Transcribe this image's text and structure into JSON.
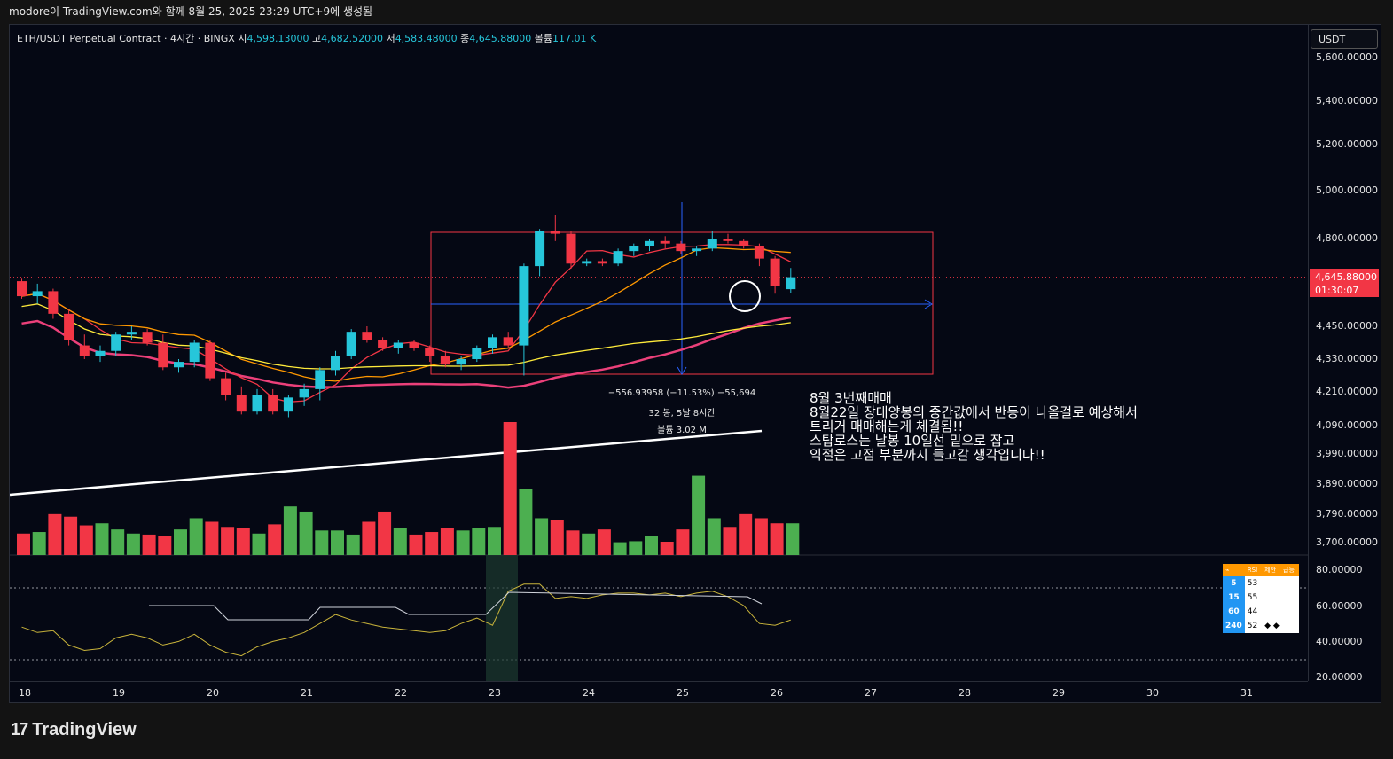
{
  "header": {
    "caption": "modore이 TradingView.com와 함께 8월 25, 2025 23:29 UTC+9에 생성됨"
  },
  "legend": {
    "symbol": "ETH/USDT Perpetual Contract · 4시간 · BINGX",
    "open_label": "시",
    "open": "4,598.13000",
    "high_label": "고",
    "high": "4,682.52000",
    "low_label": "저",
    "low": "4,583.48000",
    "close_label": "종",
    "close": "4,645.88000",
    "volume_label": "볼륨",
    "volume": "117.01 K"
  },
  "price_scale": {
    "currency": "USDT",
    "labels": [
      "5,600.00000",
      "5,400.00000",
      "5,200.00000",
      "5,000.00000",
      "4,800.00000",
      "4,450.00000",
      "4,330.00000",
      "4,210.00000",
      "4,090.00000",
      "3,990.00000",
      "3,890.00000",
      "3,790.00000",
      "3,700.00000"
    ],
    "last_price": "4,645.88000",
    "countdown": "01:30:07"
  },
  "rsi_scale": {
    "labels": [
      "80.00000",
      "60.00000",
      "40.00000",
      "20.00000"
    ]
  },
  "time_axis": {
    "labels": [
      "18",
      "19",
      "20",
      "21",
      "22",
      "23",
      "24",
      "25",
      "26",
      "27",
      "28",
      "29",
      "30",
      "31"
    ]
  },
  "measurement": {
    "change": "−556.93958 (−11.53%) −55,694",
    "bars": "32 봉, 5날 8시간",
    "volume": "볼륨 3.02 M"
  },
  "note": {
    "lines": [
      "8월 3번째매매",
      "8월22일 장대양봉의 중간값에서 반등이 나올걸로 예상해서",
      "트리거 매매해는게 체결됨!!",
      "스탑로스는 날봉 10일선 밑으로 잡고",
      "익절은 고점 부분까지 들고갈 생각입니다!!"
    ]
  },
  "rsi_table": {
    "headers": [
      "⌁",
      "RSI",
      "제안",
      "급등"
    ],
    "rows": [
      {
        "tf": "5",
        "value": "53",
        "extra": ""
      },
      {
        "tf": "15",
        "value": "55",
        "extra": ""
      },
      {
        "tf": "60",
        "value": "44",
        "extra": ""
      },
      {
        "tf": "240",
        "value": "52",
        "extra": "◆ ◆"
      }
    ]
  },
  "brand": {
    "name": "TradingView"
  },
  "colors": {
    "up": "#26c6da",
    "down": "#f23645",
    "vol_up": "#4caf50",
    "vol_down": "#f23645"
  },
  "chart_data": {
    "type": "candlestick",
    "timeframe": "4h",
    "candles": [
      [
        4630,
        4640,
        4560,
        4570
      ],
      [
        4570,
        4620,
        4540,
        4590
      ],
      [
        4590,
        4600,
        4480,
        4500
      ],
      [
        4500,
        4520,
        4380,
        4400
      ],
      [
        4380,
        4420,
        4330,
        4340
      ],
      [
        4340,
        4380,
        4320,
        4360
      ],
      [
        4360,
        4430,
        4340,
        4420
      ],
      [
        4420,
        4450,
        4400,
        4430
      ],
      [
        4430,
        4440,
        4380,
        4390
      ],
      [
        4390,
        4420,
        4290,
        4300
      ],
      [
        4300,
        4330,
        4280,
        4320
      ],
      [
        4320,
        4400,
        4300,
        4390
      ],
      [
        4390,
        4400,
        4250,
        4260
      ],
      [
        4260,
        4280,
        4180,
        4200
      ],
      [
        4200,
        4230,
        4130,
        4140
      ],
      [
        4140,
        4220,
        4130,
        4200
      ],
      [
        4200,
        4220,
        4130,
        4140
      ],
      [
        4140,
        4200,
        4120,
        4190
      ],
      [
        4190,
        4240,
        4160,
        4220
      ],
      [
        4220,
        4300,
        4180,
        4290
      ],
      [
        4290,
        4360,
        4270,
        4340
      ],
      [
        4340,
        4440,
        4330,
        4430
      ],
      [
        4430,
        4450,
        4390,
        4400
      ],
      [
        4400,
        4410,
        4360,
        4370
      ],
      [
        4370,
        4400,
        4350,
        4390
      ],
      [
        4390,
        4400,
        4360,
        4370
      ],
      [
        4370,
        4380,
        4320,
        4340
      ],
      [
        4340,
        4360,
        4300,
        4310
      ],
      [
        4310,
        4340,
        4290,
        4330
      ],
      [
        4330,
        4380,
        4320,
        4370
      ],
      [
        4370,
        4420,
        4350,
        4410
      ],
      [
        4410,
        4430,
        4370,
        4380
      ],
      [
        4380,
        4700,
        4270,
        4690
      ],
      [
        4690,
        4840,
        4650,
        4830
      ],
      [
        4830,
        4900,
        4790,
        4820
      ],
      [
        4820,
        4830,
        4680,
        4700
      ],
      [
        4700,
        4720,
        4690,
        4710
      ],
      [
        4710,
        4720,
        4690,
        4700
      ],
      [
        4700,
        4760,
        4690,
        4750
      ],
      [
        4750,
        4780,
        4730,
        4770
      ],
      [
        4770,
        4800,
        4750,
        4790
      ],
      [
        4790,
        4810,
        4760,
        4780
      ],
      [
        4780,
        4790,
        4740,
        4750
      ],
      [
        4750,
        4770,
        4730,
        4760
      ],
      [
        4760,
        4830,
        4750,
        4800
      ],
      [
        4800,
        4820,
        4780,
        4790
      ],
      [
        4790,
        4800,
        4760,
        4770
      ],
      [
        4770,
        4780,
        4690,
        4720
      ],
      [
        4720,
        4730,
        4580,
        4610
      ],
      [
        4598.13,
        4682.52,
        4583.48,
        4645.88
      ]
    ],
    "volumes": [
      0.42,
      0.45,
      0.8,
      0.75,
      0.58,
      0.62,
      0.5,
      0.42,
      0.4,
      0.38,
      0.5,
      0.72,
      0.65,
      0.55,
      0.52,
      0.42,
      0.6,
      0.95,
      0.85,
      0.48,
      0.48,
      0.4,
      0.65,
      0.85,
      0.52,
      0.4,
      0.45,
      0.52,
      0.48,
      0.52,
      0.55,
      2.6,
      1.3,
      0.72,
      0.68,
      0.48,
      0.42,
      0.5,
      0.25,
      0.27,
      0.38,
      0.26,
      0.5,
      1.55,
      0.72,
      0.55,
      0.8,
      0.72,
      0.62,
      0.62
    ],
    "rsi": [
      48,
      45,
      46,
      38,
      35,
      36,
      42,
      44,
      42,
      38,
      40,
      44,
      38,
      34,
      32,
      37,
      40,
      42,
      45,
      50,
      55,
      52,
      50,
      48,
      47,
      46,
      45,
      46,
      50,
      53,
      49,
      68,
      72,
      72,
      64,
      65,
      64,
      66,
      67,
      67,
      66,
      67,
      65,
      67,
      68,
      65,
      60,
      50,
      49,
      52
    ]
  }
}
